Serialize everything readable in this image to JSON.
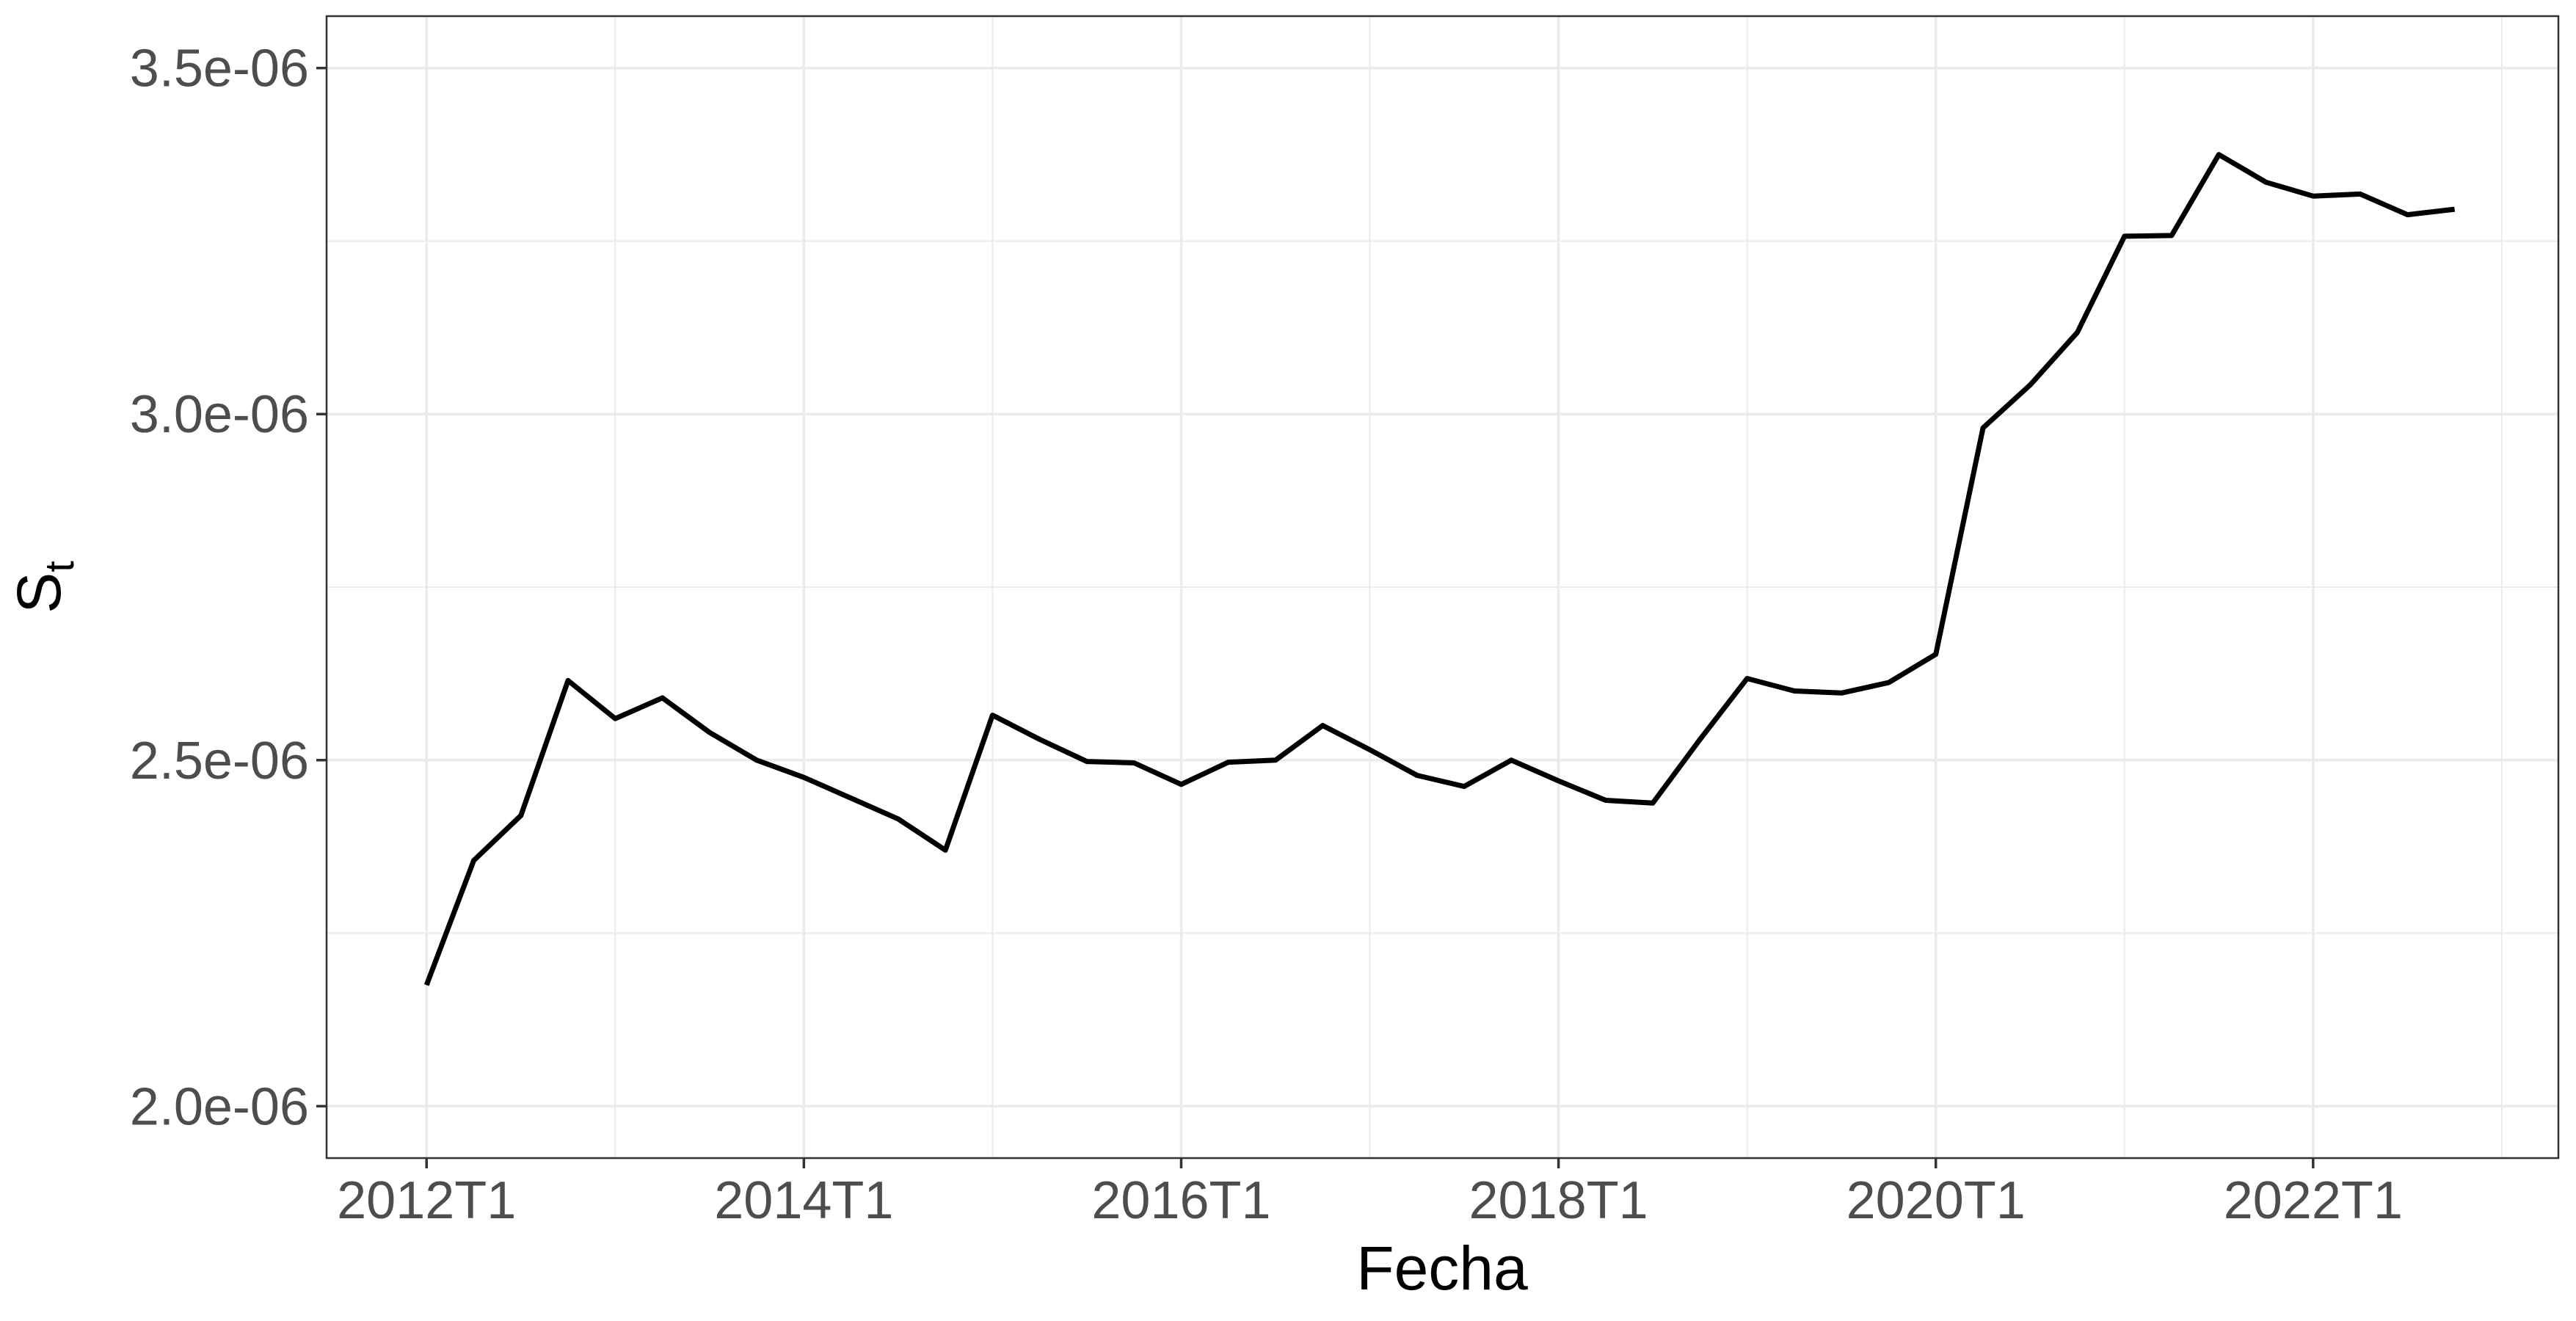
{
  "chart_data": {
    "type": "line",
    "xlabel": "Fecha",
    "ylabel": "S",
    "ylabel_sub": "t",
    "x_ticks": [
      {
        "value": 2012.0,
        "label": "2012T1"
      },
      {
        "value": 2014.0,
        "label": "2014T1"
      },
      {
        "value": 2016.0,
        "label": "2016T1"
      },
      {
        "value": 2018.0,
        "label": "2018T1"
      },
      {
        "value": 2020.0,
        "label": "2020T1"
      },
      {
        "value": 2022.0,
        "label": "2022T1"
      }
    ],
    "y_ticks": [
      {
        "value": 2e-06,
        "label": "2.0e-06"
      },
      {
        "value": 2.5e-06,
        "label": "2.5e-06"
      },
      {
        "value": 3e-06,
        "label": "3.0e-06"
      },
      {
        "value": 3.5e-06,
        "label": "3.5e-06"
      }
    ],
    "xlim": [
      2011.47,
      2023.3
    ],
    "ylim": [
      1.925e-06,
      3.575e-06
    ],
    "grid": true,
    "legend": "none",
    "line_color": "#000000",
    "series": [
      {
        "x": [
          "2012T1",
          "2012T2",
          "2012T3",
          "2012T4",
          "2013T1",
          "2013T2",
          "2013T3",
          "2013T4",
          "2014T1",
          "2014T2",
          "2014T3",
          "2014T4",
          "2015T1",
          "2015T2",
          "2015T3",
          "2015T4",
          "2016T1",
          "2016T2",
          "2016T3",
          "2016T4",
          "2017T1",
          "2017T2",
          "2017T3",
          "2017T4",
          "2018T1",
          "2018T2",
          "2018T3",
          "2018T4",
          "2019T1",
          "2019T2",
          "2019T3",
          "2019T4",
          "2020T1",
          "2020T2",
          "2020T3",
          "2020T4",
          "2021T1",
          "2021T2",
          "2021T3",
          "2021T4",
          "2022T1",
          "2022T2",
          "2022T3",
          "2022T4"
        ],
        "values": [
          2.175e-06,
          2.355e-06,
          2.42e-06,
          2.615e-06,
          2.56e-06,
          2.59e-06,
          2.54e-06,
          2.5e-06,
          2.475e-06,
          2.445e-06,
          2.415e-06,
          2.37e-06,
          2.565e-06,
          2.53e-06,
          2.498e-06,
          2.496e-06,
          2.465e-06,
          2.497e-06,
          2.5e-06,
          2.55e-06,
          2.515e-06,
          2.478e-06,
          2.462e-06,
          2.5e-06,
          2.47e-06,
          2.442e-06,
          2.438e-06,
          2.53e-06,
          2.618e-06,
          2.6e-06,
          2.597e-06,
          2.612e-06,
          2.653e-06,
          2.98e-06,
          3.042e-06,
          3.118e-06,
          3.257e-06,
          3.258e-06,
          3.375e-06,
          3.335e-06,
          3.315e-06,
          3.318e-06,
          3.288e-06,
          3.296e-06
        ]
      }
    ]
  }
}
